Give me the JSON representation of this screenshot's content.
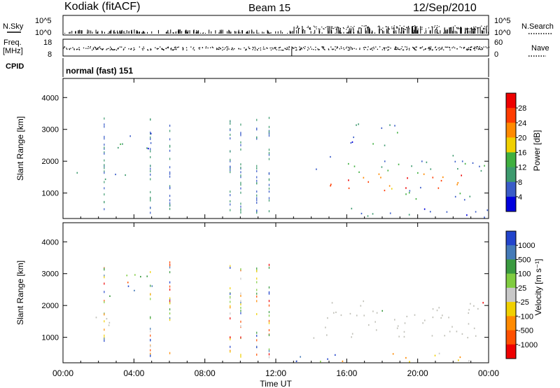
{
  "header": {
    "station": "Kodiak (fitACF)",
    "beam": "Beam 15",
    "date": "12/Sep/2010"
  },
  "status_panels": {
    "nsky_label": "N.Sky",
    "nsearch_label": "N.Search",
    "freq_label_1": "Freq.",
    "freq_label_2": "[MHz]",
    "nave_label": "Nave",
    "cpid_label": "CPID",
    "noise_left_ticks": [
      "10^5",
      "10^0"
    ],
    "noise_right_ticks": [
      "10^5",
      "10^0"
    ],
    "freq_left_ticks": [
      "18",
      "8"
    ],
    "freq_right_ticks": [
      "60",
      "0"
    ],
    "cpid_value": "normal (fast) 151"
  },
  "axes": {
    "ylabel": "Slant Range [km]",
    "xlabel": "Time UT",
    "ylim": [
      200,
      4600
    ],
    "yticks": [
      "4000",
      "3000",
      "2000",
      "1000"
    ],
    "xlim_hours": [
      0,
      24
    ],
    "xtick_labels": [
      "00:00",
      "04:00",
      "08:00",
      "12:00",
      "16:00",
      "20:00",
      "00:00"
    ]
  },
  "colors": {
    "power_scale": [
      "#0000dd",
      "#3a5cc8",
      "#3d9a6e",
      "#40b040",
      "#f0d000",
      "#ff8a00",
      "#ff3c00",
      "#ee0000"
    ],
    "velocity_scale": [
      "#2244cc",
      "#447ab8",
      "#3a9a40",
      "#80cc40",
      "#c8c8c8",
      "#f0d000",
      "#ff8a00",
      "#ff5000",
      "#ee0000"
    ],
    "ground_scatter": "#c0c0b8"
  },
  "chart_data": [
    {
      "type": "heatmap",
      "name": "power",
      "colorbar_label": "Power [dB]",
      "colorbar_ticks": [
        "28",
        "24",
        "20",
        "16",
        "12",
        "8",
        "4"
      ],
      "clim": [
        0,
        32
      ],
      "x_unit": "hours UT",
      "y_unit": "km",
      "features": [
        {
          "t": [
            0.2,
            3.5
          ],
          "r": [
            1350,
            1700
          ],
          "level": 8
        },
        {
          "t": [
            2.4,
            5.3
          ],
          "r": [
            2300,
            3000
          ],
          "level": 8
        },
        {
          "t": [
            14.2,
            24.0
          ],
          "r": [
            1600,
            2200
          ],
          "level": 10
        },
        {
          "t": [
            15.0,
            24.0
          ],
          "r": [
            1100,
            1700
          ],
          "level": 24
        },
        {
          "t": [
            18.0,
            24.0
          ],
          "r": [
            800,
            1200
          ],
          "level": 10
        },
        {
          "t": [
            13.0,
            24.0
          ],
          "r": [
            250,
            550
          ],
          "level": 6
        },
        {
          "t": [
            15.5,
            19.0
          ],
          "r": [
            2500,
            3300
          ],
          "level": 8
        }
      ]
    },
    {
      "type": "heatmap",
      "name": "velocity",
      "colorbar_label": "Velocity [m s⁻¹]",
      "colorbar_ticks": [
        "1000",
        "500",
        "100",
        "25",
        "-25",
        "-100",
        "-500",
        "-1000"
      ],
      "clim": [
        -1000,
        1000
      ],
      "x_unit": "hours UT",
      "y_unit": "km",
      "features": [
        {
          "t": [
            0.2,
            3.5
          ],
          "r": [
            1400,
            1650
          ],
          "kind": "ground"
        },
        {
          "t": [
            14.0,
            24.0
          ],
          "r": [
            1000,
            2200
          ],
          "kind": "ground"
        },
        {
          "t": [
            13.0,
            24.0
          ],
          "r": [
            250,
            550
          ],
          "kind": "mixed"
        },
        {
          "t": [
            2.4,
            5.3
          ],
          "r": [
            2300,
            3000
          ],
          "kind": "mixed"
        }
      ]
    }
  ]
}
